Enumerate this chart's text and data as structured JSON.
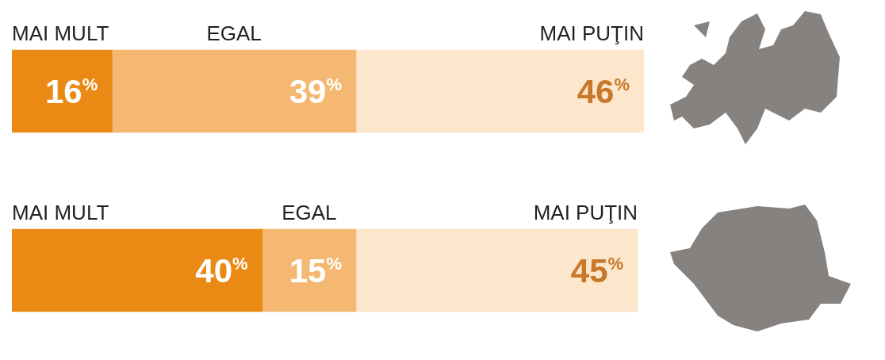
{
  "chart_data": {
    "type": "bar",
    "orientation": "horizontal",
    "stacked": true,
    "categories": [
      null,
      null
    ],
    "series": [
      {
        "name": "MAI MULT",
        "color": "#ea8a14",
        "values": [
          16,
          40
        ],
        "value_labels": [
          "16$^{%}$",
          "40$^{%}$"
        ]
      },
      {
        "name": "EGAL",
        "color": "#f4b872",
        "values": [
          39,
          15
        ],
        "value_labels": [
          "39$^{%}$",
          "15$^{%}$"
        ]
      },
      {
        "name": "MAI PUŢIN",
        "color": "#fce6cc",
        "values": [
          46,
          45
        ],
        "value_labels": [
          "46$^{%}$",
          "45$^{%}$"
        ]
      }
    ],
    "legend": false
  }
}
